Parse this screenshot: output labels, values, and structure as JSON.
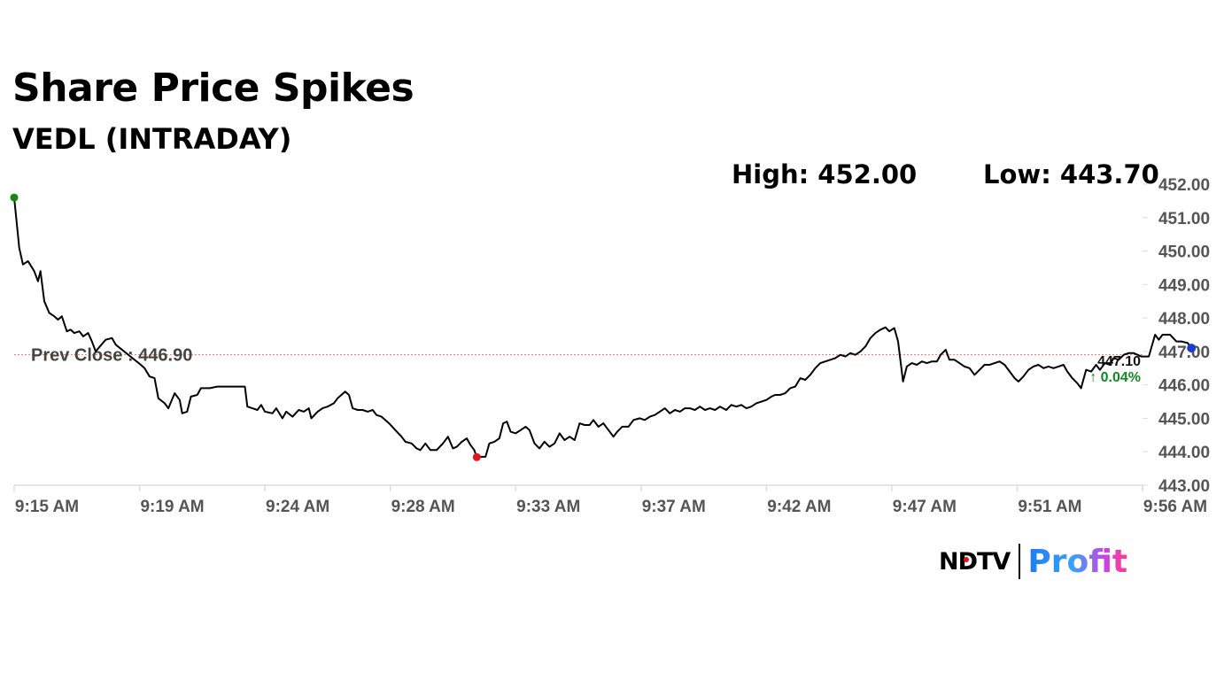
{
  "header": {
    "title": "Share Price Spikes",
    "subtitle": "VEDL (INTRADAY)",
    "high_text": "High: 452.00",
    "low_text": "Low: 443.70"
  },
  "chart_data": {
    "type": "line",
    "title": "Share Price Spikes",
    "subtitle": "VEDL (INTRADAY)",
    "xlabel": "",
    "ylabel": "",
    "ylim": [
      443.0,
      452.0
    ],
    "y_ticks": [
      "452.00",
      "451.00",
      "450.00",
      "449.00",
      "448.00",
      "447.00",
      "446.00",
      "445.00",
      "444.00",
      "443.00"
    ],
    "x_ticks": [
      "9:15 AM",
      "9:19 AM",
      "9:24 AM",
      "9:28 AM",
      "9:33 AM",
      "9:37 AM",
      "9:42 AM",
      "9:47 AM",
      "9:51 AM",
      "9:56 AM"
    ],
    "x_unit": "minutes after 9:15 AM (9:15 AM = 0, 9:19 AM = 4, 9:24 AM = 9, ...)",
    "xlim": [
      0,
      45
    ],
    "grid": false,
    "prev_close": {
      "value": 446.9,
      "label": "Prev Close : 446.90"
    },
    "last": {
      "value": 447.1,
      "label": "447.10",
      "change": "↑ 0.04%"
    },
    "high_point": {
      "x": 0.0,
      "y": 451.6
    },
    "low_point": {
      "x": 18.45,
      "y": 443.84
    },
    "series": [
      {
        "values": [
          [
            0.0,
            451.6
          ],
          [
            0.2,
            450.1
          ],
          [
            0.35,
            449.6
          ],
          [
            0.55,
            449.7
          ],
          [
            0.8,
            449.4
          ],
          [
            0.95,
            449.1
          ],
          [
            1.05,
            449.4
          ],
          [
            1.2,
            448.5
          ],
          [
            1.4,
            448.15
          ],
          [
            1.6,
            448.05
          ],
          [
            1.75,
            447.95
          ],
          [
            1.9,
            448.05
          ],
          [
            2.1,
            447.6
          ],
          [
            2.25,
            447.65
          ],
          [
            2.4,
            447.55
          ],
          [
            2.6,
            447.6
          ],
          [
            2.75,
            447.45
          ],
          [
            2.95,
            447.55
          ],
          [
            3.1,
            447.3
          ],
          [
            3.25,
            447.0
          ],
          [
            3.65,
            447.35
          ],
          [
            3.9,
            447.4
          ],
          [
            4.05,
            447.2
          ],
          [
            5.05,
            446.6
          ],
          [
            5.2,
            446.5
          ],
          [
            5.4,
            446.25
          ],
          [
            5.6,
            446.2
          ],
          [
            5.75,
            445.6
          ],
          [
            6.0,
            445.45
          ],
          [
            6.15,
            445.3
          ],
          [
            6.4,
            445.75
          ],
          [
            6.6,
            445.55
          ],
          [
            6.7,
            445.15
          ],
          [
            6.9,
            445.2
          ],
          [
            7.05,
            445.65
          ],
          [
            7.3,
            445.7
          ],
          [
            7.45,
            445.9
          ],
          [
            7.8,
            445.9
          ],
          [
            8.1,
            445.95
          ],
          [
            8.5,
            445.95
          ],
          [
            9.2,
            445.95
          ],
          [
            9.3,
            445.35
          ],
          [
            9.5,
            445.3
          ],
          [
            9.7,
            445.25
          ],
          [
            9.85,
            445.4
          ],
          [
            10.0,
            445.2
          ],
          [
            10.3,
            445.15
          ],
          [
            10.45,
            445.3
          ],
          [
            10.7,
            445.0
          ],
          [
            10.85,
            445.2
          ],
          [
            11.1,
            445.05
          ],
          [
            11.35,
            445.25
          ],
          [
            11.55,
            445.2
          ],
          [
            11.75,
            445.3
          ],
          [
            11.85,
            445.0
          ],
          [
            12.1,
            445.2
          ],
          [
            12.3,
            445.3
          ],
          [
            12.5,
            445.35
          ],
          [
            12.75,
            445.45
          ],
          [
            12.9,
            445.6
          ],
          [
            13.2,
            445.8
          ],
          [
            13.35,
            445.7
          ],
          [
            13.5,
            445.3
          ],
          [
            13.7,
            445.25
          ],
          [
            13.9,
            445.25
          ],
          [
            14.1,
            445.2
          ],
          [
            14.3,
            445.25
          ],
          [
            14.45,
            445.1
          ],
          [
            14.65,
            445.05
          ],
          [
            14.95,
            444.85
          ],
          [
            15.2,
            444.65
          ],
          [
            15.45,
            444.45
          ],
          [
            15.6,
            444.3
          ],
          [
            15.85,
            444.25
          ],
          [
            16.05,
            444.1
          ],
          [
            16.2,
            444.05
          ],
          [
            16.4,
            444.25
          ],
          [
            16.6,
            444.05
          ],
          [
            16.85,
            444.05
          ],
          [
            17.1,
            444.25
          ],
          [
            17.3,
            444.45
          ],
          [
            17.5,
            444.1
          ],
          [
            17.65,
            444.15
          ],
          [
            17.85,
            444.3
          ],
          [
            18.05,
            444.4
          ],
          [
            18.2,
            444.2
          ],
          [
            18.35,
            444.05
          ],
          [
            18.45,
            443.84
          ],
          [
            18.6,
            443.85
          ],
          [
            18.8,
            443.85
          ],
          [
            18.95,
            444.25
          ],
          [
            19.15,
            444.3
          ],
          [
            19.35,
            444.4
          ],
          [
            19.5,
            444.85
          ],
          [
            19.65,
            444.9
          ],
          [
            19.8,
            444.6
          ],
          [
            20.0,
            444.55
          ],
          [
            20.2,
            444.65
          ],
          [
            20.4,
            444.75
          ],
          [
            20.55,
            444.65
          ],
          [
            20.75,
            444.25
          ],
          [
            20.95,
            444.1
          ],
          [
            21.15,
            444.3
          ],
          [
            21.35,
            444.15
          ],
          [
            21.55,
            444.25
          ],
          [
            21.75,
            444.55
          ],
          [
            21.95,
            444.35
          ],
          [
            22.15,
            444.45
          ],
          [
            22.35,
            444.35
          ],
          [
            22.55,
            444.85
          ],
          [
            22.75,
            444.8
          ],
          [
            22.95,
            444.8
          ],
          [
            23.1,
            444.95
          ],
          [
            23.3,
            444.75
          ],
          [
            23.5,
            444.85
          ],
          [
            23.7,
            444.65
          ],
          [
            23.9,
            444.45
          ],
          [
            24.05,
            444.6
          ],
          [
            24.25,
            444.75
          ],
          [
            24.5,
            444.75
          ],
          [
            24.7,
            444.95
          ],
          [
            24.95,
            445.0
          ],
          [
            25.15,
            444.95
          ],
          [
            25.35,
            445.05
          ],
          [
            25.55,
            445.1
          ],
          [
            25.75,
            445.2
          ],
          [
            25.95,
            445.3
          ],
          [
            26.15,
            445.15
          ],
          [
            26.35,
            445.25
          ],
          [
            26.55,
            445.2
          ],
          [
            26.75,
            445.3
          ],
          [
            26.95,
            445.3
          ],
          [
            27.15,
            445.25
          ],
          [
            27.35,
            445.35
          ],
          [
            27.55,
            445.25
          ],
          [
            27.75,
            445.3
          ],
          [
            27.95,
            445.25
          ],
          [
            28.15,
            445.35
          ],
          [
            28.4,
            445.25
          ],
          [
            28.6,
            445.4
          ],
          [
            28.8,
            445.35
          ],
          [
            29.0,
            445.4
          ],
          [
            29.2,
            445.3
          ],
          [
            29.4,
            445.35
          ],
          [
            29.6,
            445.45
          ],
          [
            29.8,
            445.5
          ],
          [
            30.0,
            445.55
          ],
          [
            30.2,
            445.65
          ],
          [
            30.35,
            445.7
          ],
          [
            30.55,
            445.7
          ],
          [
            30.75,
            445.75
          ],
          [
            30.95,
            445.9
          ],
          [
            31.15,
            445.95
          ],
          [
            31.35,
            446.2
          ],
          [
            31.55,
            446.15
          ],
          [
            31.75,
            446.3
          ],
          [
            31.95,
            446.5
          ],
          [
            32.15,
            446.65
          ],
          [
            32.35,
            446.7
          ],
          [
            32.55,
            446.75
          ],
          [
            32.75,
            446.8
          ],
          [
            32.95,
            446.9
          ],
          [
            33.15,
            446.85
          ],
          [
            33.35,
            446.95
          ],
          [
            33.55,
            446.9
          ],
          [
            33.75,
            447.0
          ],
          [
            33.95,
            447.15
          ],
          [
            34.15,
            447.4
          ],
          [
            34.35,
            447.55
          ],
          [
            34.55,
            447.65
          ],
          [
            34.75,
            447.72
          ],
          [
            34.9,
            447.6
          ],
          [
            35.1,
            447.7
          ],
          [
            35.25,
            447.3
          ],
          [
            35.35,
            446.7
          ],
          [
            35.45,
            446.1
          ],
          [
            35.6,
            446.55
          ],
          [
            35.8,
            446.65
          ],
          [
            36.0,
            446.6
          ],
          [
            36.2,
            446.7
          ],
          [
            36.4,
            446.65
          ],
          [
            36.6,
            446.7
          ],
          [
            36.8,
            446.7
          ],
          [
            36.95,
            446.9
          ],
          [
            37.15,
            447.05
          ],
          [
            37.3,
            446.75
          ],
          [
            37.5,
            446.75
          ],
          [
            37.7,
            446.65
          ],
          [
            37.9,
            446.55
          ],
          [
            38.1,
            446.5
          ],
          [
            38.3,
            446.3
          ],
          [
            38.5,
            446.45
          ],
          [
            38.7,
            446.6
          ],
          [
            38.9,
            446.6
          ],
          [
            39.1,
            446.65
          ],
          [
            39.3,
            446.7
          ],
          [
            39.5,
            446.6
          ],
          [
            39.7,
            446.4
          ],
          [
            39.9,
            446.2
          ],
          [
            40.05,
            446.1
          ],
          [
            40.25,
            446.25
          ],
          [
            40.45,
            446.45
          ],
          [
            40.65,
            446.55
          ],
          [
            40.85,
            446.6
          ],
          [
            41.05,
            446.5
          ],
          [
            41.25,
            446.55
          ],
          [
            41.45,
            446.5
          ],
          [
            41.65,
            446.55
          ],
          [
            41.85,
            446.6
          ],
          [
            42.0,
            446.4
          ],
          [
            42.2,
            446.2
          ],
          [
            42.4,
            446.05
          ],
          [
            42.55,
            445.9
          ],
          [
            42.75,
            446.45
          ],
          [
            42.95,
            446.4
          ],
          [
            43.15,
            446.6
          ],
          [
            43.3,
            446.45
          ],
          [
            43.5,
            446.65
          ],
          [
            43.7,
            446.6
          ],
          [
            43.85,
            446.8
          ],
          [
            44.05,
            446.75
          ],
          [
            44.25,
            446.9
          ],
          [
            44.45,
            446.95
          ],
          [
            44.65,
            446.95
          ],
          [
            44.8,
            446.9
          ],
          [
            44.95,
            446.85
          ],
          [
            45.25,
            446.85
          ],
          [
            45.5,
            447.5
          ],
          [
            45.65,
            447.35
          ],
          [
            45.8,
            447.5
          ],
          [
            46.1,
            447.5
          ],
          [
            46.35,
            447.3
          ],
          [
            46.55,
            447.3
          ],
          [
            46.8,
            447.25
          ],
          [
            46.95,
            447.1
          ]
        ]
      }
    ]
  },
  "branding": {
    "ndtv": "NDTV",
    "profit": "Profit"
  },
  "colors": {
    "line": "#000000",
    "axis": "#dddddd",
    "prev_close": "#e07a6a",
    "high_marker": "#128a12",
    "low_marker": "#e0141c",
    "last_marker": "#1a3cd0",
    "change_up": "#12891f"
  }
}
